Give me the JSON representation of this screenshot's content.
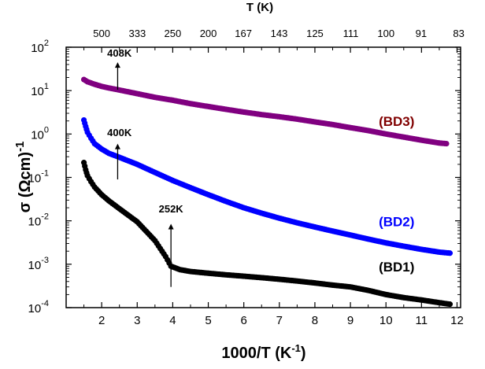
{
  "chart_data": {
    "type": "scatter",
    "xlabel": "1000/T (K",
    "xlabel_sup": "-1",
    "xlabel_end": ")",
    "ylabel": "σ (Ωcm)",
    "ylabel_sup": "-1",
    "top_axis_title": "T (K)",
    "xlim": [
      1.0,
      12.1
    ],
    "ylim": [
      0.0001,
      100
    ],
    "yscale": "log",
    "grid": false,
    "x_ticks": [
      "2",
      "3",
      "4",
      "5",
      "6",
      "7",
      "8",
      "9",
      "10",
      "11",
      "12"
    ],
    "y_ticks": [
      {
        "base": "10",
        "exp": "2"
      },
      {
        "base": "10",
        "exp": "1"
      },
      {
        "base": "10",
        "exp": "0"
      },
      {
        "base": "10",
        "exp": "-1"
      },
      {
        "base": "10",
        "exp": "-2"
      },
      {
        "base": "10",
        "exp": "-3"
      },
      {
        "base": "10",
        "exp": "-4"
      }
    ],
    "top_ticks": [
      "500",
      "333",
      "250",
      "200",
      "167",
      "143",
      "125",
      "111",
      "100",
      "91",
      "83"
    ],
    "series": [
      {
        "name": "(BD3)",
        "color": "#800080",
        "label_color": "#800000",
        "points": [
          [
            1.5,
            18
          ],
          [
            1.6,
            16
          ],
          [
            1.8,
            14
          ],
          [
            2.0,
            12.5
          ],
          [
            2.2,
            11.5
          ],
          [
            2.45,
            10.5
          ],
          [
            3.0,
            8.5
          ],
          [
            3.5,
            7
          ],
          [
            4.0,
            6
          ],
          [
            4.5,
            5
          ],
          [
            5.0,
            4.3
          ],
          [
            5.5,
            3.7
          ],
          [
            6.0,
            3.2
          ],
          [
            6.5,
            2.8
          ],
          [
            7.0,
            2.5
          ],
          [
            7.5,
            2.2
          ],
          [
            8.0,
            1.9
          ],
          [
            8.5,
            1.65
          ],
          [
            9.0,
            1.4
          ],
          [
            9.5,
            1.2
          ],
          [
            10.0,
            1.0
          ],
          [
            10.5,
            0.85
          ],
          [
            11.0,
            0.72
          ],
          [
            11.5,
            0.62
          ],
          [
            11.7,
            0.6
          ]
        ]
      },
      {
        "name": "(BD2)",
        "color": "#0000ff",
        "label_color": "#0000ff",
        "points": [
          [
            1.5,
            2.1
          ],
          [
            1.55,
            1.5
          ],
          [
            1.6,
            1.1
          ],
          [
            1.7,
            0.8
          ],
          [
            1.8,
            0.6
          ],
          [
            2.0,
            0.45
          ],
          [
            2.2,
            0.36
          ],
          [
            2.5,
            0.29
          ],
          [
            3.0,
            0.2
          ],
          [
            3.5,
            0.13
          ],
          [
            4.0,
            0.085
          ],
          [
            4.5,
            0.058
          ],
          [
            5.0,
            0.04
          ],
          [
            5.5,
            0.028
          ],
          [
            6.0,
            0.02
          ],
          [
            6.5,
            0.015
          ],
          [
            7.0,
            0.0115
          ],
          [
            7.5,
            0.009
          ],
          [
            8.0,
            0.0072
          ],
          [
            8.5,
            0.0058
          ],
          [
            9.0,
            0.0047
          ],
          [
            9.5,
            0.0038
          ],
          [
            10.0,
            0.0031
          ],
          [
            10.5,
            0.0026
          ],
          [
            11.0,
            0.0022
          ],
          [
            11.5,
            0.0019
          ],
          [
            11.8,
            0.0018
          ]
        ]
      },
      {
        "name": "(BD1)",
        "color": "#000000",
        "label_color": "#000000",
        "points": [
          [
            1.5,
            0.22
          ],
          [
            1.55,
            0.15
          ],
          [
            1.6,
            0.11
          ],
          [
            1.7,
            0.08
          ],
          [
            1.8,
            0.06
          ],
          [
            2.0,
            0.04
          ],
          [
            2.2,
            0.029
          ],
          [
            2.5,
            0.019
          ],
          [
            3.0,
            0.0095
          ],
          [
            3.5,
            0.0035
          ],
          [
            3.8,
            0.0015
          ],
          [
            3.95,
            0.0009
          ],
          [
            4.2,
            0.00075
          ],
          [
            4.5,
            0.00068
          ],
          [
            5.0,
            0.00062
          ],
          [
            5.5,
            0.00057
          ],
          [
            6.0,
            0.00053
          ],
          [
            6.5,
            0.00049
          ],
          [
            7.0,
            0.00045
          ],
          [
            7.5,
            0.00041
          ],
          [
            8.0,
            0.00037
          ],
          [
            8.5,
            0.00033
          ],
          [
            9.0,
            0.0003
          ],
          [
            9.5,
            0.00025
          ],
          [
            10.0,
            0.0002
          ],
          [
            10.5,
            0.00017
          ],
          [
            11.0,
            0.00015
          ],
          [
            11.5,
            0.00013
          ],
          [
            11.8,
            0.00012
          ]
        ]
      }
    ],
    "annotations": [
      {
        "text": "408K",
        "x": 2.45,
        "y_base": 10.5,
        "y_top": 45,
        "text_x": 2.5,
        "text_y": 60
      },
      {
        "text": "400K",
        "x": 2.45,
        "y_base": 0.09,
        "y_top": 0.6,
        "text_x": 2.5,
        "text_y": 0.9
      },
      {
        "text": "252K",
        "x": 3.95,
        "y_base": 0.0003,
        "y_top": 0.0085,
        "text_x": 3.95,
        "text_y": 0.0155
      }
    ]
  }
}
